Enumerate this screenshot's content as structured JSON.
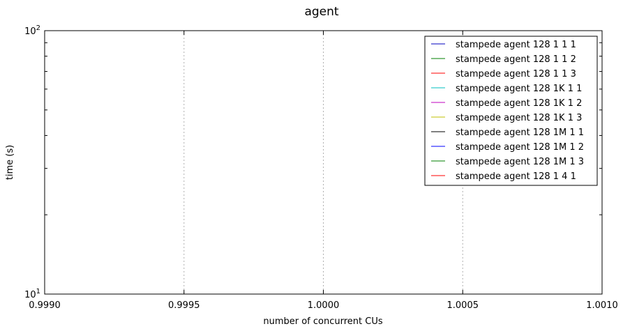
{
  "chart_data": {
    "type": "line",
    "title": "agent",
    "xlabel": "number of concurrent CUs",
    "ylabel": "time (s)",
    "xlim": [
      0.999,
      1.001
    ],
    "ylim": [
      10,
      100
    ],
    "yscale": "log",
    "x_ticks": [
      0.999,
      0.9995,
      1.0,
      1.0005,
      1.001
    ],
    "x_tick_labels": [
      "0.9990",
      "0.9995",
      "1.0000",
      "1.0005",
      "1.0010"
    ],
    "y_ticks": [
      10,
      100
    ],
    "y_tick_labels": [
      {
        "base": "10",
        "exp": "1"
      },
      {
        "base": "10",
        "exp": "2"
      }
    ],
    "grid": true,
    "legend_position": "top-right",
    "series": [
      {
        "name": "stampede agent 128 1 1 1",
        "color": "#0000bf",
        "x": [],
        "y": []
      },
      {
        "name": "stampede agent 128 1 1 2",
        "color": "#007f00",
        "x": [],
        "y": []
      },
      {
        "name": "stampede agent 128 1 1 3",
        "color": "#ff0000",
        "x": [],
        "y": []
      },
      {
        "name": "stampede agent 128 1K 1 1",
        "color": "#00bfbf",
        "x": [],
        "y": []
      },
      {
        "name": "stampede agent 128 1K 1 2",
        "color": "#bf00bf",
        "x": [],
        "y": []
      },
      {
        "name": "stampede agent 128 1K 1 3",
        "color": "#bfbf00",
        "x": [],
        "y": []
      },
      {
        "name": "stampede agent 128 1M 1 1",
        "color": "#000000",
        "x": [],
        "y": []
      },
      {
        "name": "stampede agent 128 1M 1 2",
        "color": "#0000ff",
        "x": [],
        "y": []
      },
      {
        "name": "stampede agent 128 1M 1 3",
        "color": "#007f00",
        "x": [],
        "y": []
      },
      {
        "name": "stampede agent 128 1 4 1",
        "color": "#ff0000",
        "x": [],
        "y": []
      }
    ]
  }
}
